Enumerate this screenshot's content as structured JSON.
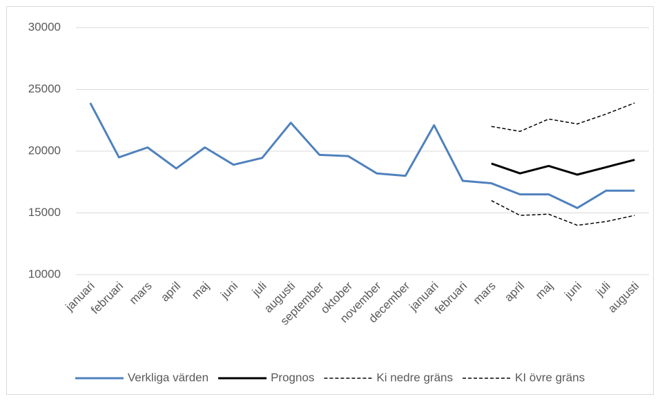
{
  "chart_data": {
    "type": "line",
    "categories": [
      "januari",
      "februari",
      "mars",
      "april",
      "maj",
      "juni",
      "juli",
      "augusti",
      "september",
      "oktober",
      "november",
      "december",
      "januari",
      "februari",
      "mars",
      "april",
      "maj",
      "juni",
      "juli",
      "augusti"
    ],
    "series": [
      {
        "name": "Verkliga värden",
        "color": "#4f81bd",
        "line_style": "solid",
        "values": [
          23900,
          19500,
          20300,
          18600,
          20300,
          18900,
          19450,
          22300,
          19700,
          19600,
          18200,
          18000,
          22100,
          17600,
          17400,
          16500,
          16500,
          15400,
          16800,
          16800
        ]
      },
      {
        "name": "Prognos",
        "color": "#000000",
        "line_style": "solid",
        "values": [
          null,
          null,
          null,
          null,
          null,
          null,
          null,
          null,
          null,
          null,
          null,
          null,
          null,
          null,
          19000,
          18200,
          18800,
          18100,
          18700,
          19300
        ]
      },
      {
        "name": "Ki nedre gräns",
        "color": "#000000",
        "line_style": "dashed",
        "values": [
          null,
          null,
          null,
          null,
          null,
          null,
          null,
          null,
          null,
          null,
          null,
          null,
          null,
          null,
          16000,
          14800,
          14900,
          14000,
          14300,
          14800
        ]
      },
      {
        "name": "KI övre gräns",
        "color": "#000000",
        "line_style": "dashed",
        "values": [
          null,
          null,
          null,
          null,
          null,
          null,
          null,
          null,
          null,
          null,
          null,
          null,
          null,
          null,
          22000,
          21600,
          22600,
          22200,
          23000,
          23900
        ]
      }
    ],
    "ylim": [
      10000,
      30000
    ],
    "yticks": [
      10000,
      15000,
      20000,
      25000,
      30000
    ],
    "grid": true,
    "legend": "bottom"
  }
}
